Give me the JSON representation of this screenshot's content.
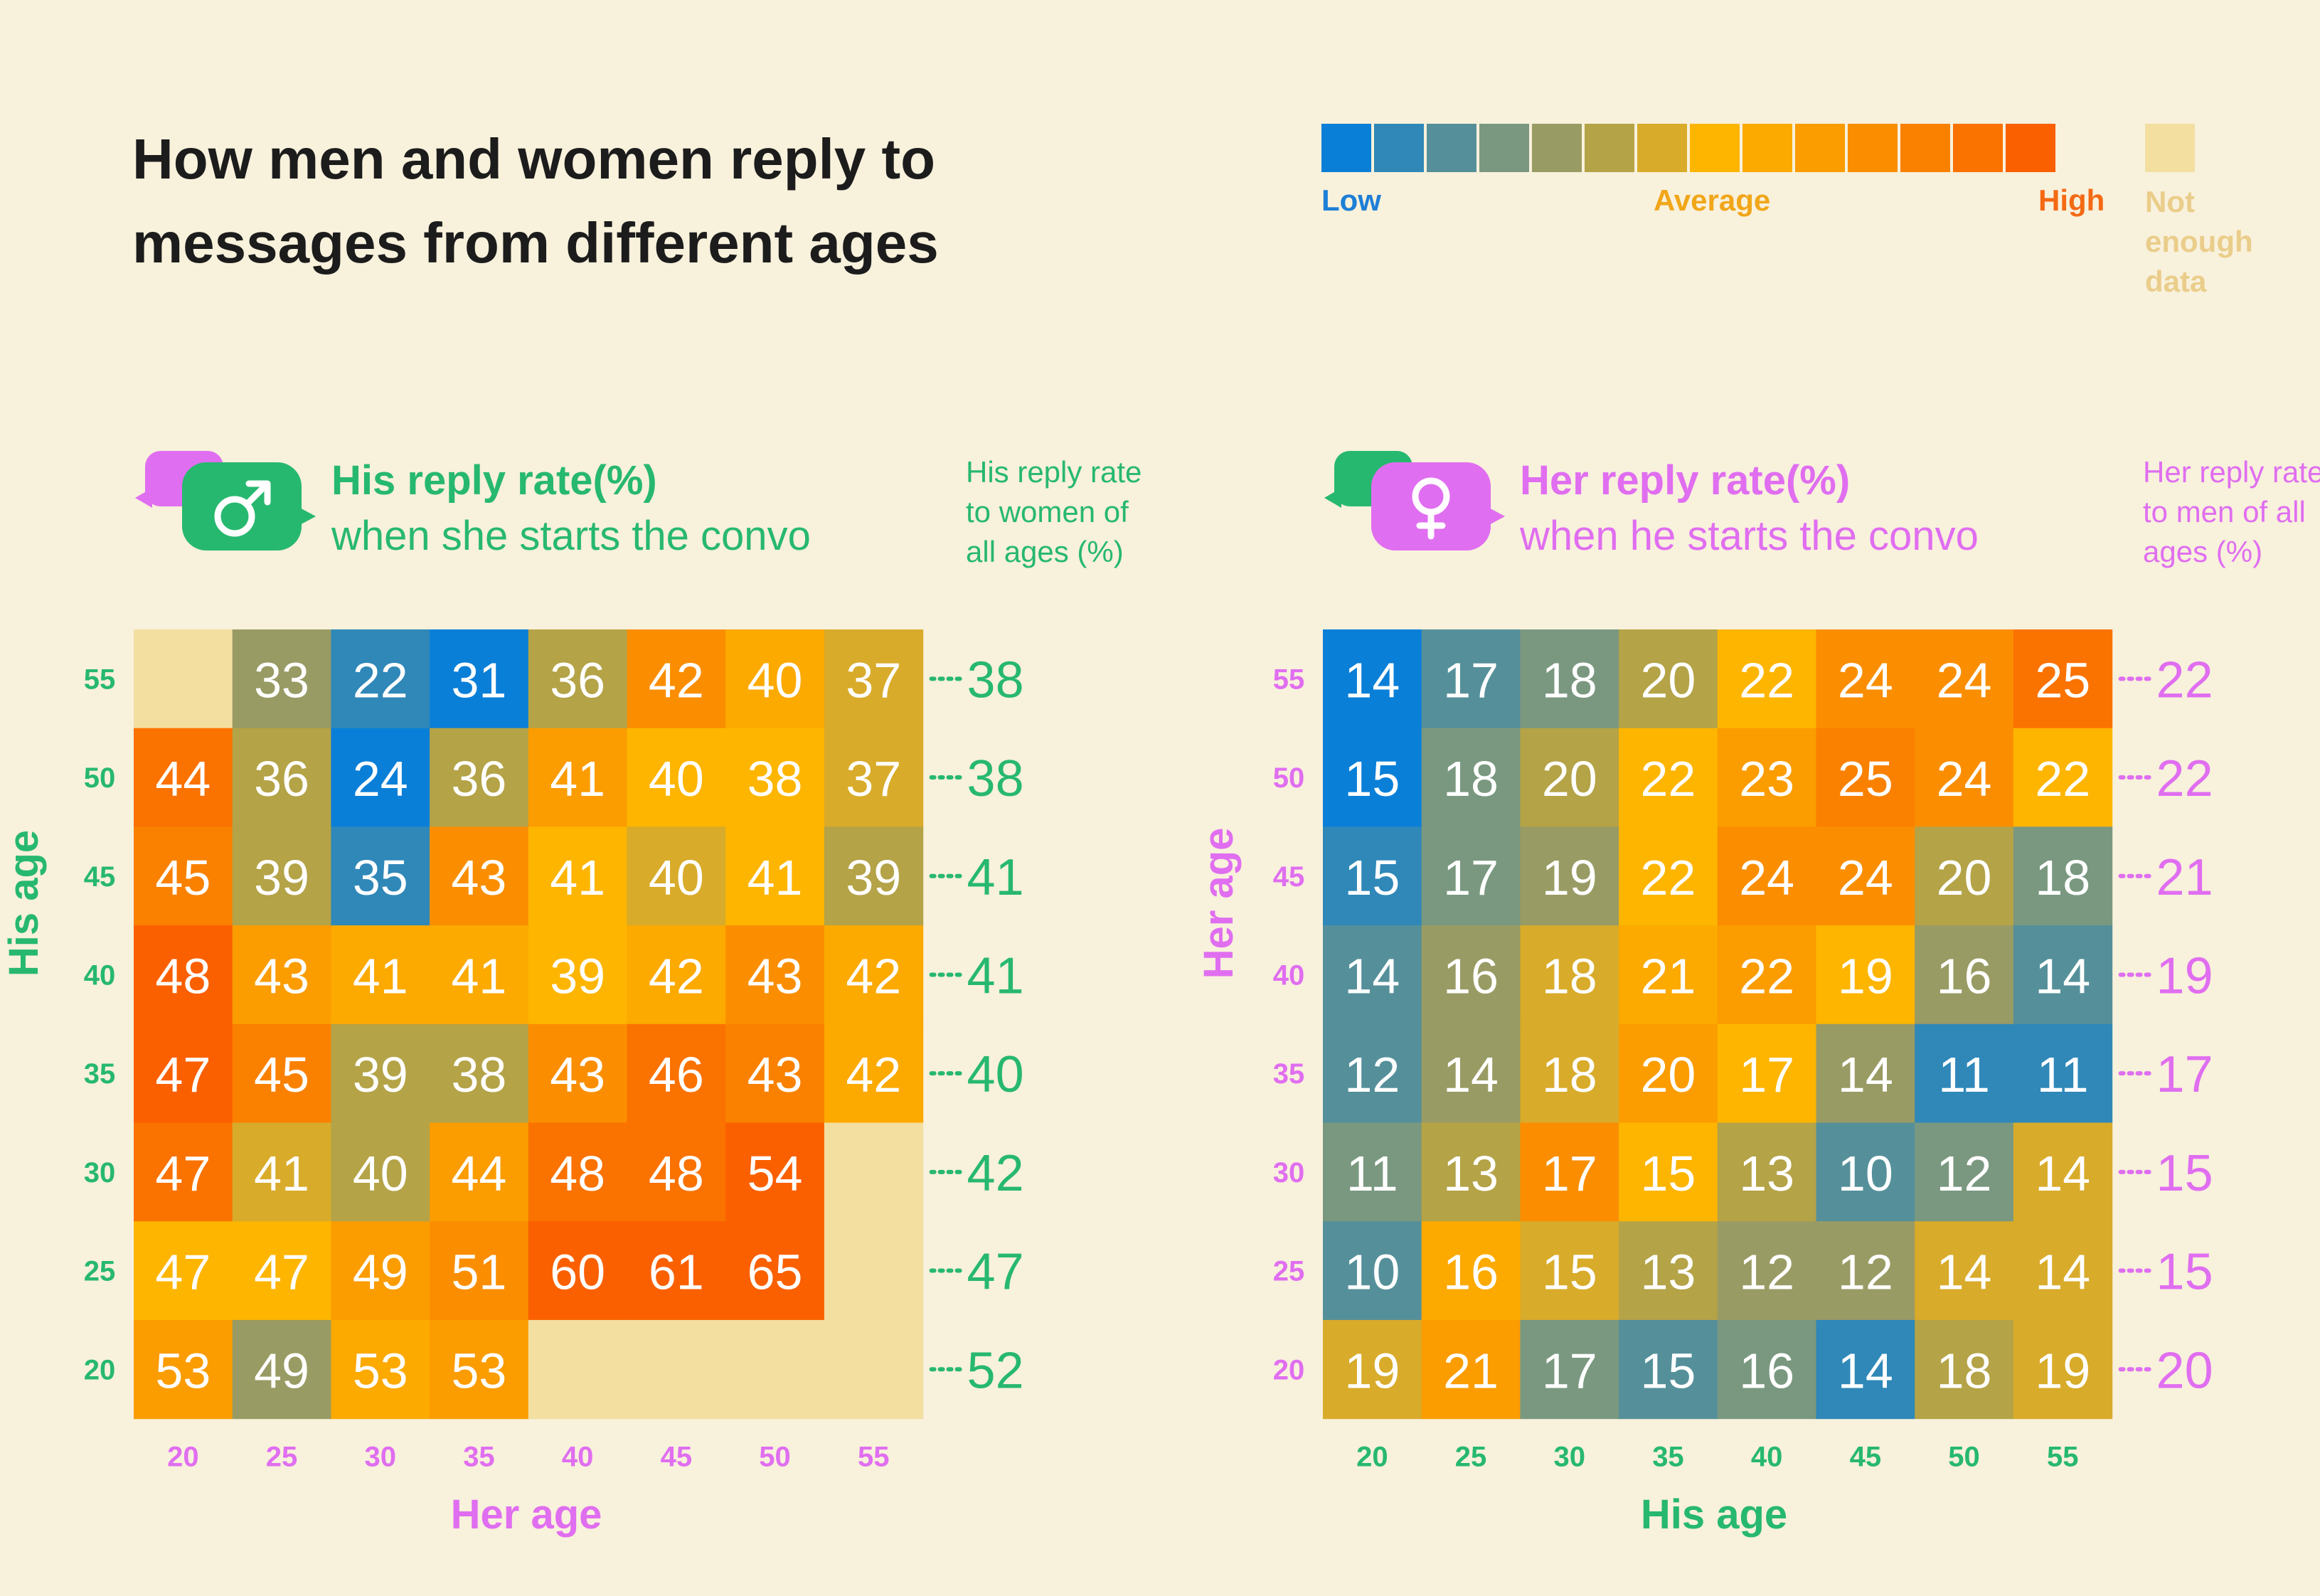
{
  "title": {
    "line1": "How men and women reply to",
    "line2": "messages from different ages"
  },
  "legend": {
    "colors": [
      "#0a7fd8",
      "#2f88b8",
      "#55909a",
      "#7a9880",
      "#999b64",
      "#b4a347",
      "#d8ab2a",
      "#fdb500",
      "#fca900",
      "#fb9c00",
      "#fa8e00",
      "#fa8100",
      "#fa7200",
      "#fa6000"
    ],
    "low": "Low",
    "average": "Average",
    "high": "High",
    "not_enough": "Not enough data",
    "not_enough_color": "#f3dfa0"
  },
  "left_panel": {
    "heading_bold": "His reply rate(%)",
    "heading_rest": "when she starts the convo",
    "side_note": "His reply rate to women of all ages (%)",
    "icon": "male-symbol-icon",
    "accent": "#27b86f",
    "y_label": "His age",
    "x_label": "Her age",
    "axis_number_color_y": "#27b86f",
    "axis_number_color_x": "#e06ef0"
  },
  "right_panel": {
    "heading_bold": "Her reply rate(%)",
    "heading_rest": "when he starts the convo",
    "side_note": "Her reply rate to men of all ages (%)",
    "icon": "female-symbol-icon",
    "accent": "#e06ef0",
    "y_label": "Her age",
    "x_label": "His age",
    "axis_number_color_y": "#e06ef0",
    "axis_number_color_x": "#27b86f"
  },
  "chart_data": [
    {
      "type": "heatmap",
      "title": "His reply rate(%) when she starts the convo",
      "xlabel": "Her age",
      "ylabel": "His age",
      "x": [
        "20",
        "25",
        "30",
        "35",
        "40",
        "45",
        "50",
        "55"
      ],
      "y": [
        "55",
        "50",
        "45",
        "40",
        "35",
        "30",
        "25",
        "20"
      ],
      "values": [
        [
          null,
          33,
          22,
          31,
          36,
          42,
          40,
          37
        ],
        [
          44,
          36,
          24,
          36,
          41,
          40,
          38,
          37
        ],
        [
          45,
          39,
          35,
          43,
          41,
          40,
          41,
          39
        ],
        [
          48,
          43,
          41,
          41,
          39,
          42,
          43,
          42
        ],
        [
          47,
          45,
          39,
          38,
          43,
          46,
          43,
          42
        ],
        [
          47,
          41,
          40,
          44,
          48,
          48,
          54,
          null
        ],
        [
          47,
          47,
          49,
          51,
          60,
          61,
          65,
          null
        ],
        [
          53,
          49,
          53,
          53,
          null,
          null,
          null,
          null
        ]
      ],
      "color_levels": [
        [
          -1,
          4,
          1,
          0,
          5,
          10,
          8,
          6
        ],
        [
          12,
          5,
          0,
          5,
          9,
          7,
          7,
          6
        ],
        [
          11,
          5,
          1,
          10,
          7,
          6,
          7,
          5
        ],
        [
          13,
          9,
          8,
          8,
          7,
          8,
          10,
          8
        ],
        [
          13,
          11,
          5,
          5,
          10,
          12,
          11,
          8
        ],
        [
          12,
          6,
          5,
          9,
          12,
          12,
          13,
          -1
        ],
        [
          7,
          7,
          9,
          10,
          13,
          13,
          13,
          -1
        ],
        [
          9,
          4,
          8,
          9,
          -1,
          -1,
          -1,
          -1
        ]
      ],
      "row_totals": [
        38,
        38,
        41,
        41,
        40,
        42,
        47,
        52
      ]
    },
    {
      "type": "heatmap",
      "title": "Her reply rate(%) when he starts the convo",
      "xlabel": "His age",
      "ylabel": "Her age",
      "x": [
        "20",
        "25",
        "30",
        "35",
        "40",
        "45",
        "50",
        "55"
      ],
      "y": [
        "55",
        "50",
        "45",
        "40",
        "35",
        "30",
        "25",
        "20"
      ],
      "values": [
        [
          14,
          17,
          18,
          20,
          22,
          24,
          24,
          25
        ],
        [
          15,
          18,
          20,
          22,
          23,
          25,
          24,
          22
        ],
        [
          15,
          17,
          19,
          22,
          24,
          24,
          20,
          18
        ],
        [
          14,
          16,
          18,
          21,
          22,
          19,
          16,
          14
        ],
        [
          12,
          14,
          18,
          20,
          17,
          14,
          11,
          11
        ],
        [
          11,
          13,
          17,
          15,
          13,
          10,
          12,
          14
        ],
        [
          10,
          16,
          15,
          13,
          12,
          12,
          14,
          14
        ],
        [
          19,
          21,
          17,
          15,
          16,
          14,
          18,
          19
        ]
      ],
      "color_levels": [
        [
          0,
          2,
          3,
          5,
          7,
          10,
          10,
          12
        ],
        [
          0,
          3,
          5,
          7,
          9,
          11,
          10,
          7
        ],
        [
          1,
          3,
          4,
          7,
          10,
          10,
          5,
          3
        ],
        [
          2,
          4,
          6,
          8,
          9,
          7,
          4,
          2
        ],
        [
          2,
          4,
          6,
          9,
          7,
          4,
          1,
          1
        ],
        [
          3,
          5,
          10,
          7,
          5,
          2,
          3,
          6
        ],
        [
          2,
          8,
          6,
          5,
          4,
          4,
          6,
          6
        ],
        [
          6,
          9,
          3,
          2,
          3,
          1,
          5,
          6
        ]
      ],
      "row_totals": [
        22,
        22,
        21,
        19,
        17,
        15,
        15,
        20
      ]
    }
  ]
}
